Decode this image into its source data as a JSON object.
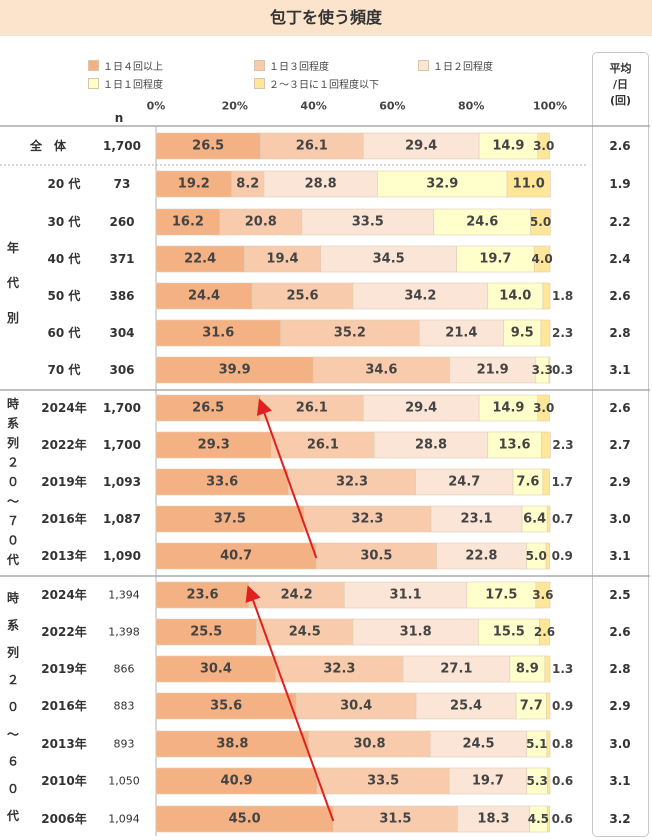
{
  "title": "包丁を使う頻度",
  "legend": [
    {
      "label": "１日４回以上",
      "color": "#f4b183"
    },
    {
      "label": "１日３回程度",
      "color": "#f8cbad"
    },
    {
      "label": "１日２回程度",
      "color": "#fbe5d6"
    },
    {
      "label": "１日１回程度",
      "color": "#ffffcc"
    },
    {
      "label": "２～３日に１回程度以下",
      "color": "#ffe699"
    }
  ],
  "avg_header": [
    "平均",
    "/日",
    "(回)"
  ],
  "n_label": "n",
  "axis_ticks": [
    "0%",
    "20%",
    "40%",
    "60%",
    "80%",
    "100%"
  ],
  "groups": [
    {
      "label": ""
    },
    {
      "label": "年代別"
    },
    {
      "label": "時系列２０～７０代"
    },
    {
      "label": "時系列２０～６０代"
    }
  ],
  "chart_data": {
    "type": "bar",
    "stacked": true,
    "orientation": "horizontal",
    "title": "包丁を使う頻度",
    "xlim": [
      0,
      100
    ],
    "series_names": [
      "１日４回以上",
      "１日３回程度",
      "１日２回程度",
      "１日１回程度",
      "２～３日に１回程度以下"
    ],
    "rows": [
      {
        "label": "全　体",
        "n": "1,700",
        "values": [
          26.5,
          26.1,
          29.4,
          14.9,
          3.0
        ],
        "avg": "2.6",
        "group": 0
      },
      {
        "label": "20 代",
        "n": "73",
        "values": [
          19.2,
          8.2,
          28.8,
          32.9,
          11.0
        ],
        "avg": "1.9",
        "group": 1
      },
      {
        "label": "30 代",
        "n": "260",
        "values": [
          16.2,
          20.8,
          33.5,
          24.6,
          5.0
        ],
        "avg": "2.2",
        "group": 1
      },
      {
        "label": "40 代",
        "n": "371",
        "values": [
          22.4,
          19.4,
          34.5,
          19.7,
          4.0
        ],
        "avg": "2.4",
        "group": 1
      },
      {
        "label": "50 代",
        "n": "386",
        "values": [
          24.4,
          25.6,
          34.2,
          14.0,
          1.8
        ],
        "avg": "2.6",
        "group": 1
      },
      {
        "label": "60 代",
        "n": "304",
        "values": [
          31.6,
          35.2,
          21.4,
          9.5,
          2.3
        ],
        "avg": "2.8",
        "group": 1
      },
      {
        "label": "70 代",
        "n": "306",
        "values": [
          39.9,
          34.6,
          21.9,
          3.3,
          0.3
        ],
        "avg": "3.1",
        "group": 1
      },
      {
        "label": "2024年",
        "n": "1,700",
        "values": [
          26.5,
          26.1,
          29.4,
          14.9,
          3.0
        ],
        "avg": "2.6",
        "group": 2
      },
      {
        "label": "2022年",
        "n": "1,700",
        "values": [
          29.3,
          26.1,
          28.8,
          13.6,
          2.3
        ],
        "avg": "2.7",
        "group": 2
      },
      {
        "label": "2019年",
        "n": "1,093",
        "values": [
          33.6,
          32.3,
          24.7,
          7.6,
          1.7
        ],
        "avg": "2.9",
        "group": 2
      },
      {
        "label": "2016年",
        "n": "1,087",
        "values": [
          37.5,
          32.3,
          23.1,
          6.4,
          0.7
        ],
        "avg": "3.0",
        "group": 2
      },
      {
        "label": "2013年",
        "n": "1,090",
        "values": [
          40.7,
          30.5,
          22.8,
          5.0,
          0.9
        ],
        "avg": "3.1",
        "group": 2
      },
      {
        "label": "2024年",
        "n": "1,394",
        "values": [
          23.6,
          24.2,
          31.1,
          17.5,
          3.6
        ],
        "avg": "2.5",
        "group": 3
      },
      {
        "label": "2022年",
        "n": "1,398",
        "values": [
          25.5,
          24.5,
          31.8,
          15.5,
          2.6
        ],
        "avg": "2.6",
        "group": 3
      },
      {
        "label": "2019年",
        "n": "866",
        "values": [
          30.4,
          32.3,
          27.1,
          8.9,
          1.3
        ],
        "avg": "2.8",
        "group": 3
      },
      {
        "label": "2016年",
        "n": "883",
        "values": [
          35.6,
          30.4,
          25.4,
          7.7,
          0.9
        ],
        "avg": "2.9",
        "group": 3
      },
      {
        "label": "2013年",
        "n": "893",
        "values": [
          38.8,
          30.8,
          24.5,
          5.1,
          0.8
        ],
        "avg": "3.0",
        "group": 3
      },
      {
        "label": "2010年",
        "n": "1,050",
        "values": [
          40.9,
          33.5,
          19.7,
          5.3,
          0.6
        ],
        "avg": "3.1",
        "group": 3
      },
      {
        "label": "2006年",
        "n": "1,094",
        "values": [
          45.0,
          31.5,
          18.3,
          4.5,
          0.6
        ],
        "avg": "3.2",
        "group": 3
      }
    ],
    "trend_arrows": [
      {
        "from_row": 11,
        "to_row": 7,
        "color": "#e02020"
      },
      {
        "from_row": 18,
        "to_row": 12,
        "color": "#e02020"
      }
    ],
    "colors": {
      "series": [
        "#f4b183",
        "#f8cbad",
        "#fbe5d6",
        "#ffffcc",
        "#ffe699"
      ],
      "arrow": "#e02020",
      "bar_border": "#e0cdb5"
    }
  }
}
